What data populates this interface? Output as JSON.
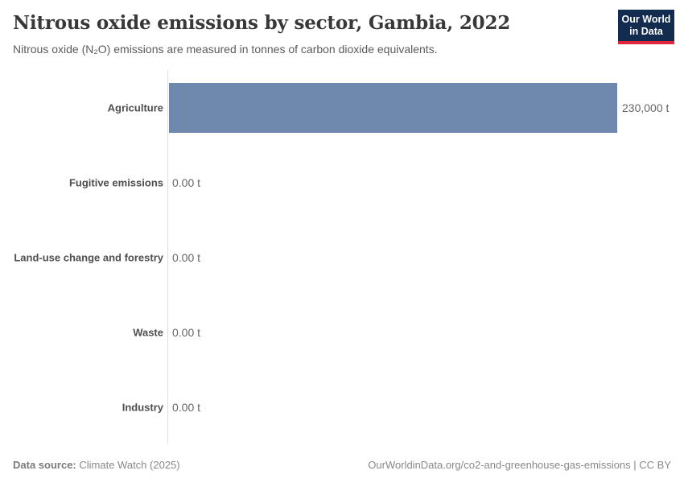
{
  "header": {
    "title": "Nitrous oxide emissions by sector, Gambia, 2022",
    "subtitle": "Nitrous oxide (N₂O) emissions are measured in tonnes of carbon dioxide equivalents."
  },
  "logo": {
    "line1": "Our World",
    "line2": "in Data",
    "bg_color": "#132b4e",
    "accent_color": "#e0263c"
  },
  "chart_data": {
    "type": "bar",
    "orientation": "horizontal",
    "title": "Nitrous oxide emissions by sector, Gambia, 2022",
    "categories": [
      "Agriculture",
      "Fugitive emissions",
      "Land-use change and forestry",
      "Waste",
      "Industry"
    ],
    "values": [
      230000,
      0,
      0,
      0,
      0
    ],
    "value_labels": [
      "230,000 t",
      "0.00 t",
      "0.00 t",
      "0.00 t",
      "0.00 t"
    ],
    "unit": "t",
    "xlim": [
      0,
      230000
    ],
    "grid": false,
    "legend": "none",
    "bar_color": "#6f88ad",
    "axis_line_color": "#e0e0e0"
  },
  "footer": {
    "source_label": "Data source:",
    "source_value": "Climate Watch (2025)",
    "link_text": "OurWorldinData.org/co2-and-greenhouse-gas-emissions | CC BY"
  }
}
